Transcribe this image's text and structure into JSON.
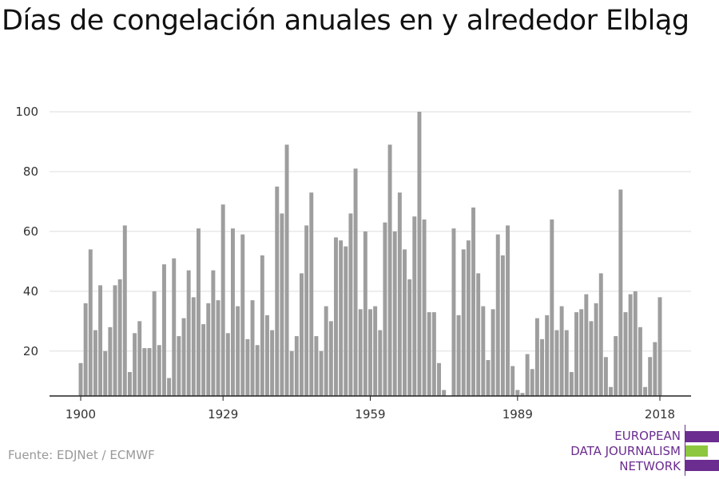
{
  "title": "Días de congelación anuales en y alrededor Elbląg",
  "source": "Fuente: EDJNet / ECMWF",
  "logo": {
    "lines": [
      "EUROPEAN",
      "DATA JOURNALISM",
      "NETWORK"
    ],
    "colors": {
      "purple": "#6b2d8f",
      "green": "#8dc63f"
    }
  },
  "colors": {
    "bar": "#9e9e9e",
    "grid": "#dddddd",
    "axis": "#222222"
  },
  "chart_data": {
    "type": "bar",
    "title": "Días de congelación anuales en y alrededor Elbląg",
    "xlabel": "",
    "ylabel": "",
    "ylim": [
      5,
      100
    ],
    "yticks": [
      20,
      40,
      60,
      80,
      100
    ],
    "xticks": [
      1900,
      1929,
      1959,
      1989,
      2018
    ],
    "grid": true,
    "x": [
      1900,
      1901,
      1902,
      1903,
      1904,
      1905,
      1906,
      1907,
      1908,
      1909,
      1910,
      1911,
      1912,
      1913,
      1914,
      1915,
      1916,
      1917,
      1918,
      1919,
      1920,
      1921,
      1922,
      1923,
      1924,
      1925,
      1926,
      1927,
      1928,
      1929,
      1930,
      1931,
      1932,
      1933,
      1934,
      1935,
      1936,
      1937,
      1938,
      1939,
      1940,
      1941,
      1942,
      1943,
      1944,
      1945,
      1946,
      1947,
      1948,
      1949,
      1950,
      1951,
      1952,
      1953,
      1954,
      1955,
      1956,
      1957,
      1958,
      1959,
      1960,
      1961,
      1962,
      1963,
      1964,
      1965,
      1966,
      1967,
      1968,
      1969,
      1970,
      1971,
      1972,
      1973,
      1974,
      1975,
      1976,
      1977,
      1978,
      1979,
      1980,
      1981,
      1982,
      1983,
      1984,
      1985,
      1986,
      1987,
      1988,
      1989,
      1990,
      1991,
      1992,
      1993,
      1994,
      1995,
      1996,
      1997,
      1998,
      1999,
      2000,
      2001,
      2002,
      2003,
      2004,
      2005,
      2006,
      2007,
      2008,
      2009,
      2010,
      2011,
      2012,
      2013,
      2014,
      2015,
      2016,
      2017,
      2018
    ],
    "values": [
      16,
      36,
      54,
      27,
      42,
      20,
      28,
      42,
      44,
      62,
      13,
      26,
      30,
      21,
      21,
      40,
      22,
      49,
      11,
      51,
      25,
      31,
      47,
      38,
      61,
      29,
      36,
      47,
      37,
      69,
      26,
      61,
      35,
      59,
      24,
      37,
      22,
      52,
      32,
      27,
      75,
      66,
      89,
      20,
      25,
      46,
      62,
      73,
      25,
      20,
      35,
      30,
      58,
      57,
      55,
      66,
      81,
      34,
      60,
      34,
      35,
      27,
      63,
      89,
      60,
      73,
      54,
      44,
      65,
      100,
      64,
      33,
      33,
      16,
      7,
      5,
      61,
      32,
      54,
      57,
      68,
      46,
      35,
      17,
      34,
      59,
      52,
      62,
      15,
      7,
      6,
      19,
      14,
      31,
      24,
      32,
      64,
      27,
      35,
      27,
      13,
      33,
      34,
      39,
      30,
      36,
      46,
      18,
      8,
      25,
      74,
      33,
      39,
      40,
      28,
      8,
      18,
      23,
      38
    ]
  }
}
